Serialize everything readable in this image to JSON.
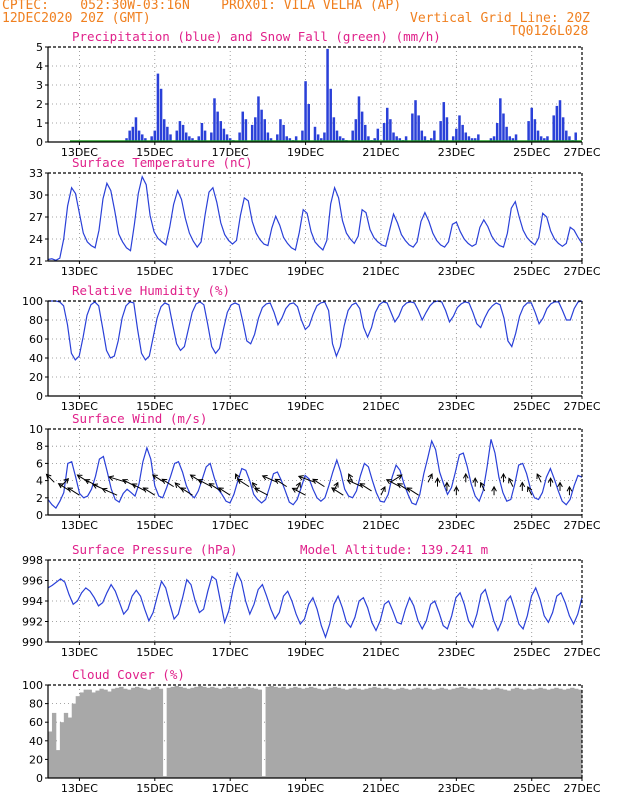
{
  "header": {
    "line1": "CPTEC:    052:30W-03:16N    PROX01: VILA VELHA (AP)",
    "line2_left": "12DEC2020 20Z (GMT)",
    "line2_right": "Vertical Grid Line: 20Z",
    "code": "TQ0126L028"
  },
  "colors": {
    "header": "#f08020",
    "title": "#e0208a",
    "line": "#2a40d8",
    "snow": "#20a020",
    "cloud": "#a8a8a8",
    "grid": "#888888"
  },
  "x_ticks": [
    "13DEC",
    "15DEC",
    "17DEC",
    "19DEC",
    "21DEC",
    "23DEC",
    "25DEC",
    "27DEC"
  ],
  "chart_data": [
    {
      "type": "bar",
      "title": "Precipitation (blue) and Snow Fall (green) (mm/h)",
      "ylim": [
        0,
        5
      ],
      "yticks": [
        "0",
        "1",
        "2",
        "3",
        "4",
        "5"
      ],
      "x_hours": [
        50,
        52,
        54,
        56,
        58,
        60,
        62,
        66,
        68,
        70,
        72,
        74,
        76,
        78,
        82,
        84,
        86,
        88,
        90,
        92,
        94,
        96,
        98,
        100,
        104,
        106,
        108,
        110,
        112,
        114,
        116,
        118,
        122,
        124,
        126,
        130,
        132,
        134,
        136,
        138,
        140,
        142,
        146,
        148,
        150,
        152,
        154,
        156,
        158,
        162,
        164,
        166,
        170,
        172,
        174,
        176,
        178,
        180,
        182,
        184,
        186,
        188,
        190,
        194,
        196,
        198,
        200,
        202,
        204,
        206,
        208,
        210,
        214,
        216,
        218,
        220,
        222,
        224,
        226,
        228,
        232,
        234,
        236,
        238,
        240,
        242,
        244,
        246,
        250,
        252,
        254,
        258,
        260,
        262,
        264,
        266,
        268,
        270,
        272,
        274,
        282,
        284,
        286,
        288,
        290,
        292,
        294,
        296,
        298,
        306,
        308,
        310,
        312,
        314,
        316,
        318,
        322,
        324,
        326,
        328,
        330,
        332,
        334,
        336
      ],
      "values": [
        0.2,
        0.6,
        0.8,
        1.3,
        0.6,
        0.4,
        0.2,
        0.3,
        0.6,
        3.6,
        2.8,
        1.2,
        0.8,
        0.4,
        0.6,
        1.1,
        0.9,
        0.5,
        0.3,
        0.2,
        0.1,
        0.3,
        1.0,
        0.6,
        0.5,
        2.3,
        1.6,
        1.1,
        0.7,
        0.4,
        0.2,
        0.1,
        0.5,
        1.6,
        1.2,
        0.9,
        1.3,
        2.4,
        1.7,
        1.2,
        0.5,
        0.2,
        0.4,
        1.2,
        0.9,
        0.3,
        0.2,
        0.1,
        0.3,
        0.6,
        3.2,
        2.0,
        0.8,
        0.4,
        0.2,
        0.5,
        4.9,
        2.8,
        1.3,
        0.6,
        0.3,
        0.2,
        0.1,
        0.6,
        1.2,
        2.4,
        1.6,
        0.9,
        0.3,
        0.1,
        0.2,
        0.7,
        1.0,
        1.8,
        1.2,
        0.5,
        0.3,
        0.2,
        0.1,
        0.3,
        1.5,
        2.2,
        1.4,
        0.6,
        0.3,
        0.1,
        0.2,
        0.6,
        1.1,
        2.1,
        1.3,
        0.3,
        0.7,
        1.4,
        0.9,
        0.5,
        0.3,
        0.2,
        0.2,
        0.4,
        0.2,
        0.3,
        1.0,
        2.3,
        1.5,
        0.8,
        0.3,
        0.2,
        0.4,
        1.1,
        1.8,
        1.2,
        0.6,
        0.3,
        0.2,
        0.3,
        1.4,
        1.9,
        2.2,
        1.3,
        0.6,
        0.3,
        0.1,
        0.5
      ],
      "snow_values": [
        0
      ]
    },
    {
      "type": "line",
      "title": "Surface Temperature (nC)",
      "ylim": [
        21,
        33
      ],
      "yticks": [
        "21",
        "24",
        "27",
        "30",
        "33"
      ],
      "series": [
        {
          "values": [
            21.2,
            21.3,
            21.1,
            21.4,
            24.0,
            28.5,
            31.0,
            30.2,
            27.5,
            24.8,
            23.6,
            23.1,
            22.8,
            25.2,
            29.5,
            31.6,
            30.6,
            27.8,
            24.7,
            23.6,
            22.8,
            22.4,
            26.0,
            30.2,
            32.5,
            31.4,
            27.2,
            25.0,
            24.1,
            23.6,
            23.2,
            25.6,
            28.7,
            30.6,
            29.4,
            26.8,
            24.8,
            23.7,
            22.9,
            23.6,
            27.3,
            30.4,
            31.0,
            29.0,
            26.2,
            24.6,
            23.8,
            23.3,
            23.8,
            27.2,
            29.6,
            29.2,
            26.4,
            24.8,
            23.9,
            23.3,
            23.1,
            25.5,
            27.1,
            25.9,
            24.2,
            23.4,
            22.8,
            22.5,
            24.9,
            28.0,
            27.5,
            25.0,
            23.6,
            23.0,
            22.5,
            23.8,
            28.8,
            31.0,
            29.6,
            26.5,
            24.8,
            24.0,
            23.4,
            24.4,
            28.0,
            27.6,
            25.3,
            24.2,
            23.6,
            23.2,
            23.0,
            25.2,
            27.4,
            26.2,
            24.6,
            23.8,
            23.2,
            22.9,
            23.6,
            26.4,
            27.6,
            26.4,
            24.8,
            23.8,
            23.2,
            22.9,
            23.6,
            26.0,
            26.3,
            25.0,
            24.0,
            23.4,
            23.0,
            23.3,
            25.6,
            26.6,
            25.7,
            24.4,
            23.6,
            23.1,
            22.9,
            24.8,
            28.2,
            29.1,
            27.0,
            25.2,
            24.2,
            23.6,
            23.2,
            24.2,
            27.5,
            27.0,
            25.1,
            24.0,
            23.4,
            23.0,
            23.4,
            25.6,
            25.2,
            24.2,
            23.4
          ]
        }
      ]
    },
    {
      "type": "line",
      "title": "Relative Humidity (%)",
      "ylim": [
        0,
        100
      ],
      "yticks": [
        "0",
        "20",
        "40",
        "60",
        "80",
        "100"
      ],
      "series": [
        {
          "values": [
            100,
            100,
            100,
            99,
            95,
            75,
            45,
            38,
            42,
            62,
            85,
            96,
            99,
            95,
            72,
            48,
            40,
            42,
            58,
            82,
            95,
            99,
            98,
            70,
            45,
            38,
            42,
            62,
            82,
            94,
            98,
            96,
            75,
            55,
            48,
            52,
            70,
            88,
            97,
            99,
            96,
            75,
            52,
            45,
            50,
            70,
            88,
            96,
            98,
            96,
            78,
            58,
            55,
            65,
            82,
            93,
            97,
            98,
            88,
            75,
            82,
            92,
            97,
            98,
            94,
            80,
            70,
            74,
            86,
            95,
            98,
            99,
            90,
            55,
            42,
            52,
            74,
            90,
            96,
            98,
            92,
            72,
            62,
            72,
            88,
            96,
            99,
            98,
            88,
            78,
            84,
            94,
            98,
            99,
            98,
            90,
            80,
            88,
            95,
            99,
            100,
            99,
            90,
            78,
            84,
            93,
            97,
            99,
            98,
            88,
            76,
            72,
            82,
            90,
            95,
            98,
            96,
            82,
            58,
            52,
            66,
            84,
            94,
            98,
            98,
            88,
            76,
            82,
            92,
            97,
            99,
            99,
            90,
            80,
            80,
            92,
            99,
            100
          ]
        }
      ]
    },
    {
      "type": "line",
      "title": "Surface Wind (m/s)",
      "ylim": [
        0,
        10
      ],
      "yticks": [
        "0",
        "2",
        "4",
        "6",
        "8",
        "10"
      ],
      "series": [
        {
          "values": [
            1.8,
            1.2,
            0.8,
            1.6,
            2.6,
            6.0,
            6.2,
            4.4,
            2.5,
            2.0,
            2.2,
            3.0,
            4.5,
            6.5,
            6.8,
            5.0,
            3.0,
            1.8,
            1.5,
            2.5,
            3.0,
            2.6,
            2.2,
            3.6,
            6.2,
            7.8,
            6.5,
            3.4,
            2.2,
            2.0,
            3.2,
            4.5,
            6.0,
            6.2,
            5.0,
            3.4,
            2.4,
            2.0,
            2.8,
            4.2,
            5.6,
            6.0,
            4.4,
            3.0,
            2.4,
            1.6,
            1.4,
            2.4,
            4.0,
            5.4,
            5.2,
            4.0,
            2.4,
            1.8,
            1.4,
            1.8,
            3.2,
            4.8,
            5.0,
            4.0,
            2.8,
            1.5,
            1.2,
            1.8,
            3.2,
            4.6,
            4.2,
            3.0,
            2.0,
            1.6,
            2.0,
            3.4,
            5.0,
            6.4,
            5.0,
            3.0,
            2.2,
            2.0,
            2.8,
            4.6,
            6.0,
            5.6,
            4.0,
            2.6,
            1.6,
            1.5,
            2.4,
            4.4,
            5.8,
            5.2,
            3.6,
            2.4,
            1.4,
            1.2,
            2.4,
            4.8,
            6.6,
            8.6,
            7.6,
            5.0,
            3.6,
            2.4,
            3.2,
            5.0,
            7.0,
            7.2,
            5.6,
            3.6,
            2.2,
            1.6,
            2.8,
            5.6,
            8.8,
            7.2,
            4.4,
            2.6,
            1.6,
            1.8,
            3.6,
            5.8,
            6.0,
            4.8,
            3.0,
            2.0,
            1.8,
            2.6,
            4.4,
            5.4,
            4.2,
            2.8,
            1.6,
            1.2,
            1.8,
            3.4,
            4.6,
            4.4
          ]
        }
      ],
      "wind_arrow_hours": [
        4,
        8,
        14,
        20,
        26,
        32,
        38,
        44,
        50,
        56,
        62,
        68,
        74,
        80,
        86,
        92,
        98,
        104,
        110,
        116,
        122,
        128,
        134,
        140,
        146,
        152,
        158,
        164,
        170,
        176,
        182,
        188,
        194,
        200,
        206,
        212,
        218,
        224,
        230,
        236,
        242,
        248,
        254,
        260,
        266,
        272,
        278,
        284,
        290,
        296,
        302,
        308,
        314,
        320,
        326,
        332
      ],
      "wind_arrow_deg": [
        70,
        110,
        60,
        60,
        60,
        55,
        50,
        50,
        40,
        55,
        55,
        60,
        60,
        60,
        70,
        60,
        60,
        55,
        60,
        60,
        80,
        60,
        75,
        55,
        50,
        60,
        100,
        55,
        45,
        60,
        100,
        60,
        80,
        50,
        60,
        100,
        120,
        55,
        60,
        60,
        100,
        90,
        90,
        90,
        90,
        90,
        80,
        90,
        90,
        80,
        90,
        80,
        80,
        90,
        90,
        90
      ]
    },
    {
      "type": "line",
      "title": "Surface Pressure (hPa)",
      "annotation": "Model Altitude: 139.241 m",
      "ylim": [
        989,
        999
      ],
      "yticks": [
        "990",
        "992",
        "994",
        "996",
        "998"
      ],
      "series": [
        {
          "values": [
            995.6,
            995.9,
            996.3,
            996.7,
            996.3,
            994.8,
            993.6,
            994.0,
            995.0,
            995.6,
            995.2,
            994.4,
            993.4,
            993.8,
            995.0,
            996.0,
            995.2,
            993.8,
            992.4,
            993.0,
            994.6,
            995.3,
            994.6,
            993.0,
            991.6,
            992.6,
            994.6,
            996.4,
            995.6,
            993.6,
            991.8,
            992.4,
            994.4,
            996.6,
            996.0,
            994.0,
            992.6,
            993.0,
            995.2,
            997.0,
            996.6,
            994.0,
            991.4,
            992.8,
            995.4,
            997.4,
            996.4,
            994.0,
            992.4,
            993.6,
            995.4,
            996.0,
            994.6,
            993.0,
            991.8,
            992.6,
            994.6,
            995.2,
            994.0,
            992.4,
            991.2,
            991.8,
            993.6,
            994.4,
            993.0,
            991.0,
            989.6,
            991.2,
            993.6,
            994.6,
            993.2,
            991.4,
            990.8,
            992.0,
            994.0,
            994.4,
            993.2,
            991.4,
            990.4,
            991.6,
            993.6,
            994.0,
            992.8,
            991.4,
            991.2,
            993.0,
            994.4,
            993.4,
            991.6,
            990.6,
            991.6,
            993.6,
            994.0,
            992.6,
            991.0,
            990.6,
            992.2,
            994.4,
            995.0,
            993.6,
            991.6,
            990.8,
            992.4,
            994.8,
            995.4,
            993.6,
            991.6,
            990.4,
            991.6,
            994.0,
            994.6,
            993.0,
            991.2,
            990.6,
            992.2,
            994.6,
            995.6,
            994.2,
            992.2,
            991.4,
            992.6,
            994.6,
            995.0,
            993.8,
            992.2,
            991.2,
            992.4,
            994.4
          ]
        }
      ]
    },
    {
      "type": "bar",
      "title": "Cloud Cover (%)",
      "ylim": [
        0,
        100
      ],
      "yticks": [
        "0",
        "20",
        "40",
        "60",
        "80",
        "100"
      ],
      "values": [
        50,
        70,
        30,
        60,
        70,
        65,
        80,
        88,
        92,
        95,
        95,
        92,
        94,
        96,
        95,
        93,
        96,
        97,
        98,
        96,
        95,
        97,
        98,
        97,
        96,
        95,
        97,
        98,
        96,
        2,
        97,
        98,
        99,
        98,
        97,
        96,
        97,
        98,
        99,
        98,
        97,
        98,
        97,
        96,
        97,
        98,
        97,
        98,
        96,
        97,
        98,
        97,
        96,
        95,
        2,
        98,
        99,
        98,
        97,
        98,
        96,
        97,
        98,
        97,
        96,
        97,
        98,
        97,
        96,
        95,
        96,
        97,
        98,
        97,
        96,
        95,
        96,
        97,
        96,
        95,
        96,
        97,
        98,
        97,
        96,
        97,
        96,
        95,
        96,
        97,
        96,
        95,
        96,
        97,
        96,
        97,
        96,
        95,
        96,
        97,
        96,
        95,
        96,
        97,
        98,
        97,
        96,
        97,
        96,
        95,
        96,
        95,
        96,
        97,
        96,
        95,
        94,
        96,
        97,
        96,
        95,
        96,
        95,
        96,
        97,
        96,
        95,
        96,
        97,
        96,
        95,
        96,
        97,
        96,
        95
      ]
    }
  ]
}
